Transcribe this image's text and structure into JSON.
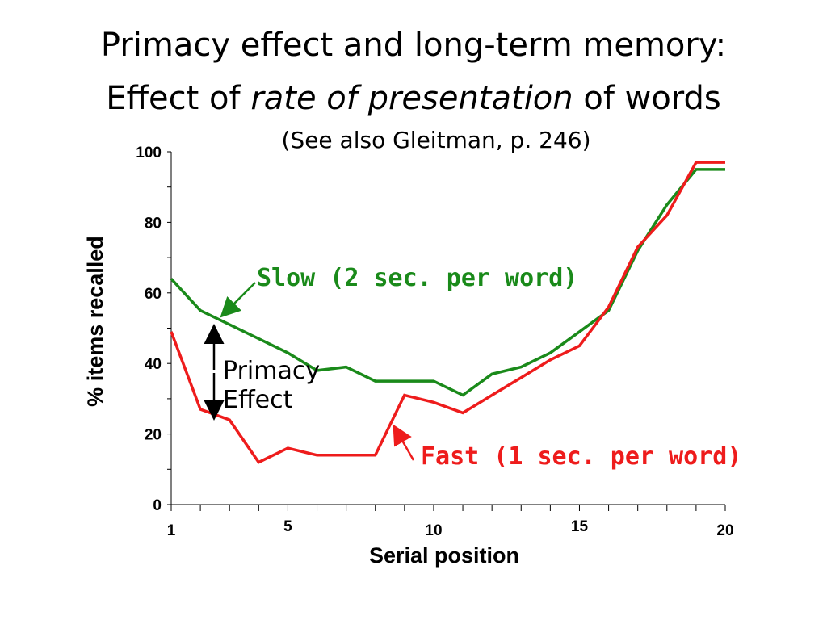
{
  "title_line1": "Primacy effect and long-term memory:",
  "title_line2_pre": "Effect of ",
  "title_line2_italic": "rate of presentation",
  "title_line2_post": " of words",
  "subtitle": "(See also Gleitman, p. 246)",
  "chart_data": {
    "type": "line",
    "xlabel": "Serial position",
    "ylabel": "% items recalled",
    "xlim": [
      1,
      20
    ],
    "ylim": [
      0,
      100
    ],
    "x_tick_labels": [
      "1",
      "5",
      "10",
      "15",
      "20"
    ],
    "y_tick_labels": [
      "0",
      "20",
      "40",
      "60",
      "80",
      "100"
    ],
    "grid": false,
    "series": [
      {
        "name": "Slow (2 sec. per word)",
        "color": "#1a8a1a",
        "x": [
          1,
          2,
          3,
          4,
          5,
          6,
          7,
          8,
          9,
          10,
          11,
          12,
          13,
          14,
          15,
          16,
          17,
          18,
          19,
          20
        ],
        "values": [
          64,
          55,
          51,
          47,
          43,
          38,
          39,
          35,
          35,
          35,
          31,
          37,
          39,
          43,
          49,
          55,
          72,
          85,
          95,
          95
        ]
      },
      {
        "name": "Fast (1 sec. per word)",
        "color": "#ee1c1c",
        "x": [
          1,
          2,
          3,
          4,
          5,
          6,
          7,
          8,
          9,
          10,
          11,
          12,
          13,
          14,
          15,
          16,
          17,
          18,
          19,
          20
        ],
        "values": [
          49,
          27,
          24,
          12,
          16,
          14,
          14,
          14,
          31,
          29,
          26,
          31,
          36,
          41,
          45,
          56,
          73,
          82,
          97,
          97
        ]
      }
    ],
    "annotations": {
      "primacy": "Primacy\nEffect"
    }
  }
}
